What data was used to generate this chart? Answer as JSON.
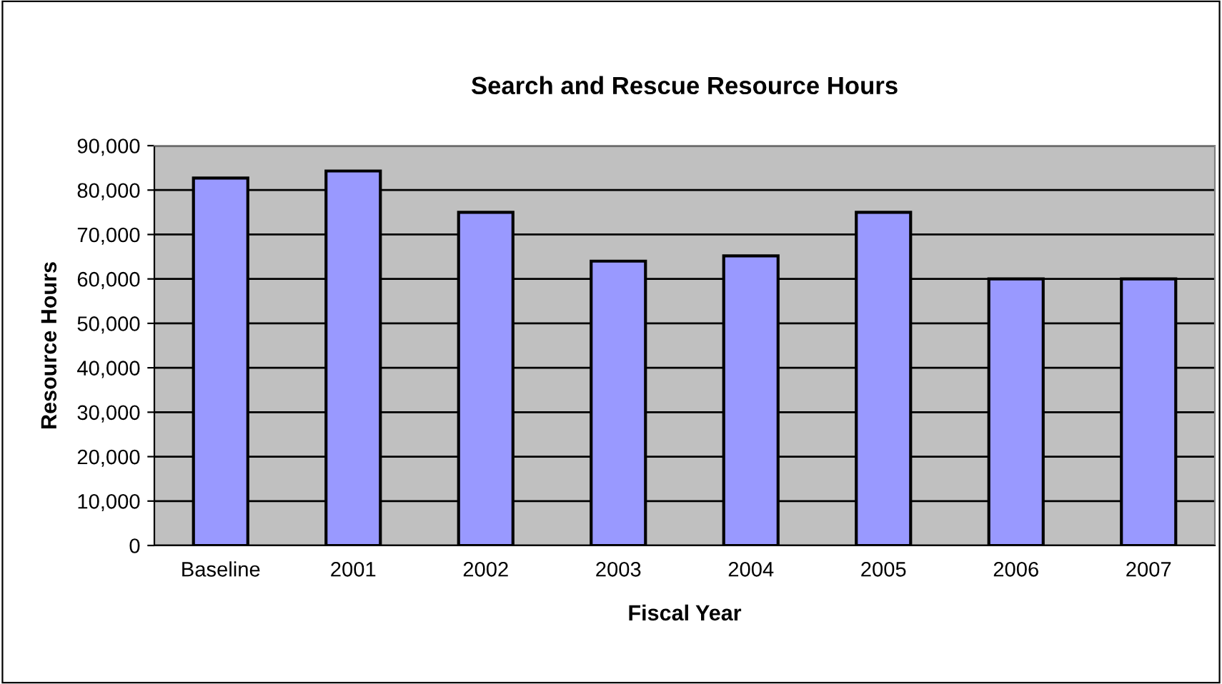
{
  "chart_data": {
    "type": "bar",
    "title": "Search and Rescue Resource Hours",
    "xlabel": "Fiscal Year",
    "ylabel": "Resource Hours",
    "categories": [
      "Baseline",
      "2001",
      "2002",
      "2003",
      "2004",
      "2005",
      "2006",
      "2007"
    ],
    "values": [
      82700,
      84300,
      75000,
      64000,
      65200,
      75000,
      60000,
      60000
    ],
    "color": "#9999ff",
    "ylim": [
      0,
      90000
    ],
    "yticks": [
      {
        "value": 0,
        "label": "0"
      },
      {
        "value": 10000,
        "label": "10,000"
      },
      {
        "value": 20000,
        "label": "20,000"
      },
      {
        "value": 30000,
        "label": "30,000"
      },
      {
        "value": 40000,
        "label": "40,000"
      },
      {
        "value": 50000,
        "label": "50,000"
      },
      {
        "value": 60000,
        "label": "60,000"
      },
      {
        "value": 70000,
        "label": "70,000"
      },
      {
        "value": 80000,
        "label": "80,000"
      },
      {
        "value": 90000,
        "label": "90,000"
      }
    ],
    "grid": "y",
    "legend": false
  }
}
